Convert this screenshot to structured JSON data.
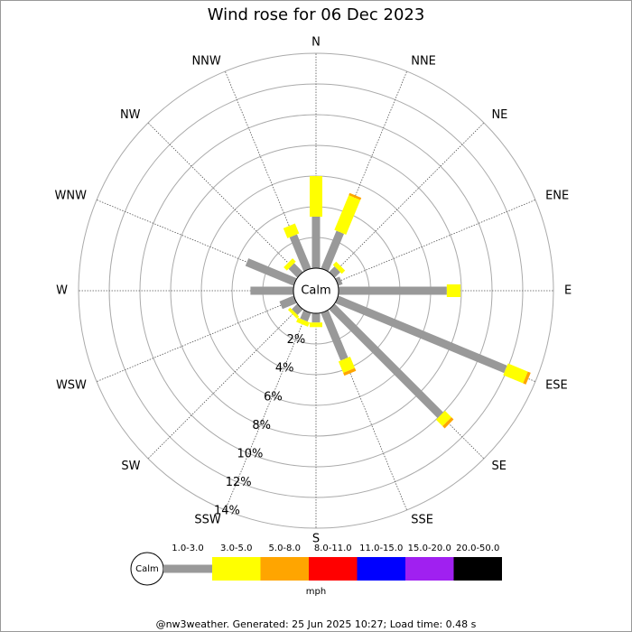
{
  "chart_data": {
    "type": "wind-rose",
    "title": "Wind rose for 06 Dec 2023",
    "calm_label": "Calm",
    "unit_label": "mph",
    "footer": "@nw3weather. Generated: 25 Jun 2025 10:27; Load time: 0.48 s",
    "categories": [
      "N",
      "NNE",
      "NE",
      "ENE",
      "E",
      "ESE",
      "SE",
      "SSE",
      "S",
      "SSW",
      "SW",
      "WSW",
      "W",
      "WNW",
      "NW",
      "NNW"
    ],
    "rlim": [
      0,
      14
    ],
    "rticks": [
      {
        "value": 2,
        "label": "2%"
      },
      {
        "value": 4,
        "label": "4%"
      },
      {
        "value": 6,
        "label": "6%"
      },
      {
        "value": 8,
        "label": "8%"
      },
      {
        "value": 10,
        "label": "10%"
      },
      {
        "value": 12,
        "label": "12%"
      },
      {
        "value": 14,
        "label": "14%"
      }
    ],
    "series": [
      {
        "name": "1.0-3.0",
        "color": "#999999",
        "values": [
          3.35,
          2.65,
          0.5,
          0.3,
          7.05,
          11.9,
          10.0,
          3.35,
          0.6,
          0.6,
          0.5,
          1.0,
          2.8,
          3.4,
          0.8,
          2.4
        ]
      },
      {
        "name": "3.0-5.0",
        "color": "#ffff00",
        "values": [
          2.65,
          2.45,
          0.3,
          0,
          0.9,
          1.4,
          0.6,
          0.8,
          0.3,
          0.3,
          0.2,
          0,
          0,
          0,
          0.3,
          0.7
        ]
      },
      {
        "name": "5.0-8.0",
        "color": "#ffa500",
        "values": [
          0,
          0.15,
          0,
          0,
          0,
          0.2,
          0.2,
          0.2,
          0,
          0,
          0,
          0,
          0,
          0,
          0,
          0
        ]
      },
      {
        "name": "8.0-11.0",
        "color": "#ff0000",
        "values": [
          0,
          0,
          0,
          0,
          0,
          0,
          0,
          0,
          0,
          0,
          0,
          0,
          0,
          0,
          0,
          0
        ]
      },
      {
        "name": "11.0-15.0",
        "color": "#0000ff",
        "values": [
          0,
          0,
          0,
          0,
          0,
          0,
          0,
          0,
          0,
          0,
          0,
          0,
          0,
          0,
          0,
          0
        ]
      },
      {
        "name": "15.0-20.0",
        "color": "#a020f0",
        "values": [
          0,
          0,
          0,
          0,
          0,
          0,
          0,
          0,
          0,
          0,
          0,
          0,
          0,
          0,
          0,
          0
        ]
      },
      {
        "name": "20.0-50.0",
        "color": "#000000",
        "values": [
          0,
          0,
          0,
          0,
          0,
          0,
          0,
          0,
          0,
          0,
          0,
          0,
          0,
          0,
          0,
          0
        ]
      }
    ]
  }
}
